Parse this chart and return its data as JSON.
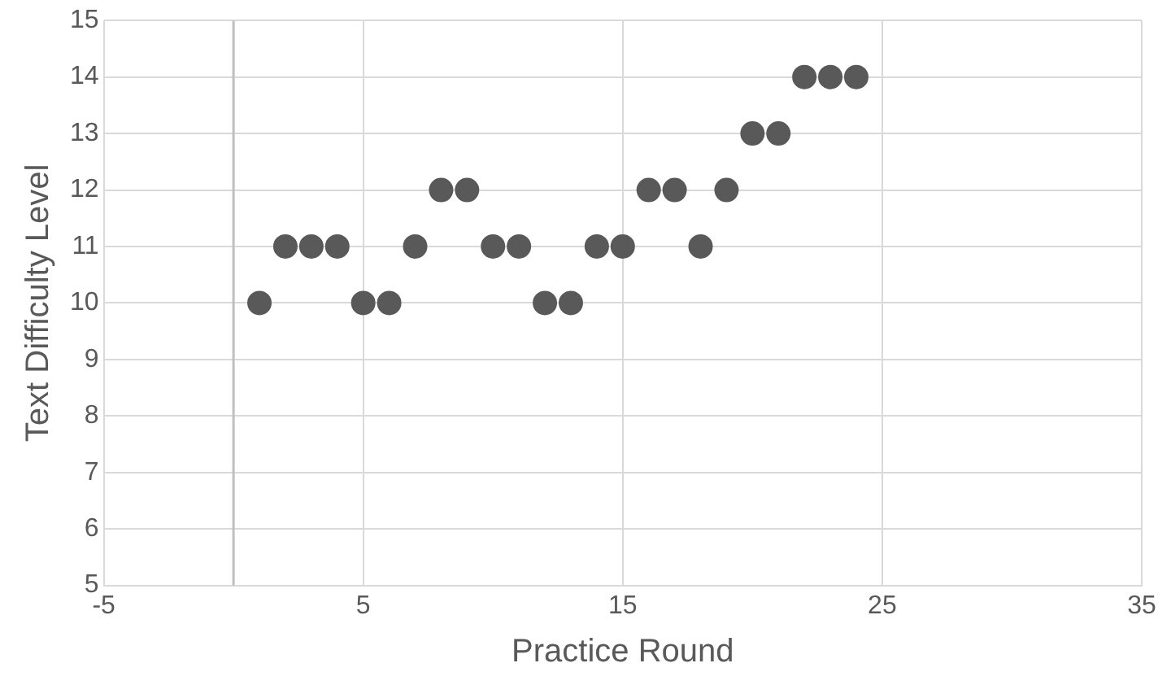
{
  "chart_data": {
    "type": "scatter",
    "xlabel": "Practice Round",
    "ylabel": "Text Difficulty Level",
    "x": [
      1,
      2,
      3,
      4,
      5,
      6,
      7,
      8,
      9,
      10,
      11,
      12,
      13,
      14,
      15,
      16,
      17,
      18,
      19,
      20,
      21,
      22,
      23,
      24
    ],
    "series": [
      {
        "color": "#595959",
        "values": [
          10,
          11,
          11,
          11,
          10,
          10,
          11,
          12,
          12,
          11,
          11,
          10,
          10,
          11,
          11,
          12,
          12,
          11,
          12,
          13,
          13,
          14,
          14,
          14
        ]
      }
    ],
    "xlim": [
      -5,
      35
    ],
    "xticks": [
      -5,
      5,
      15,
      25,
      35
    ],
    "ylim": [
      5,
      15
    ],
    "yticks": [
      5,
      6,
      7,
      8,
      9,
      10,
      11,
      12,
      13,
      14,
      15
    ],
    "grid": true,
    "legend": false,
    "marker": "circle"
  }
}
